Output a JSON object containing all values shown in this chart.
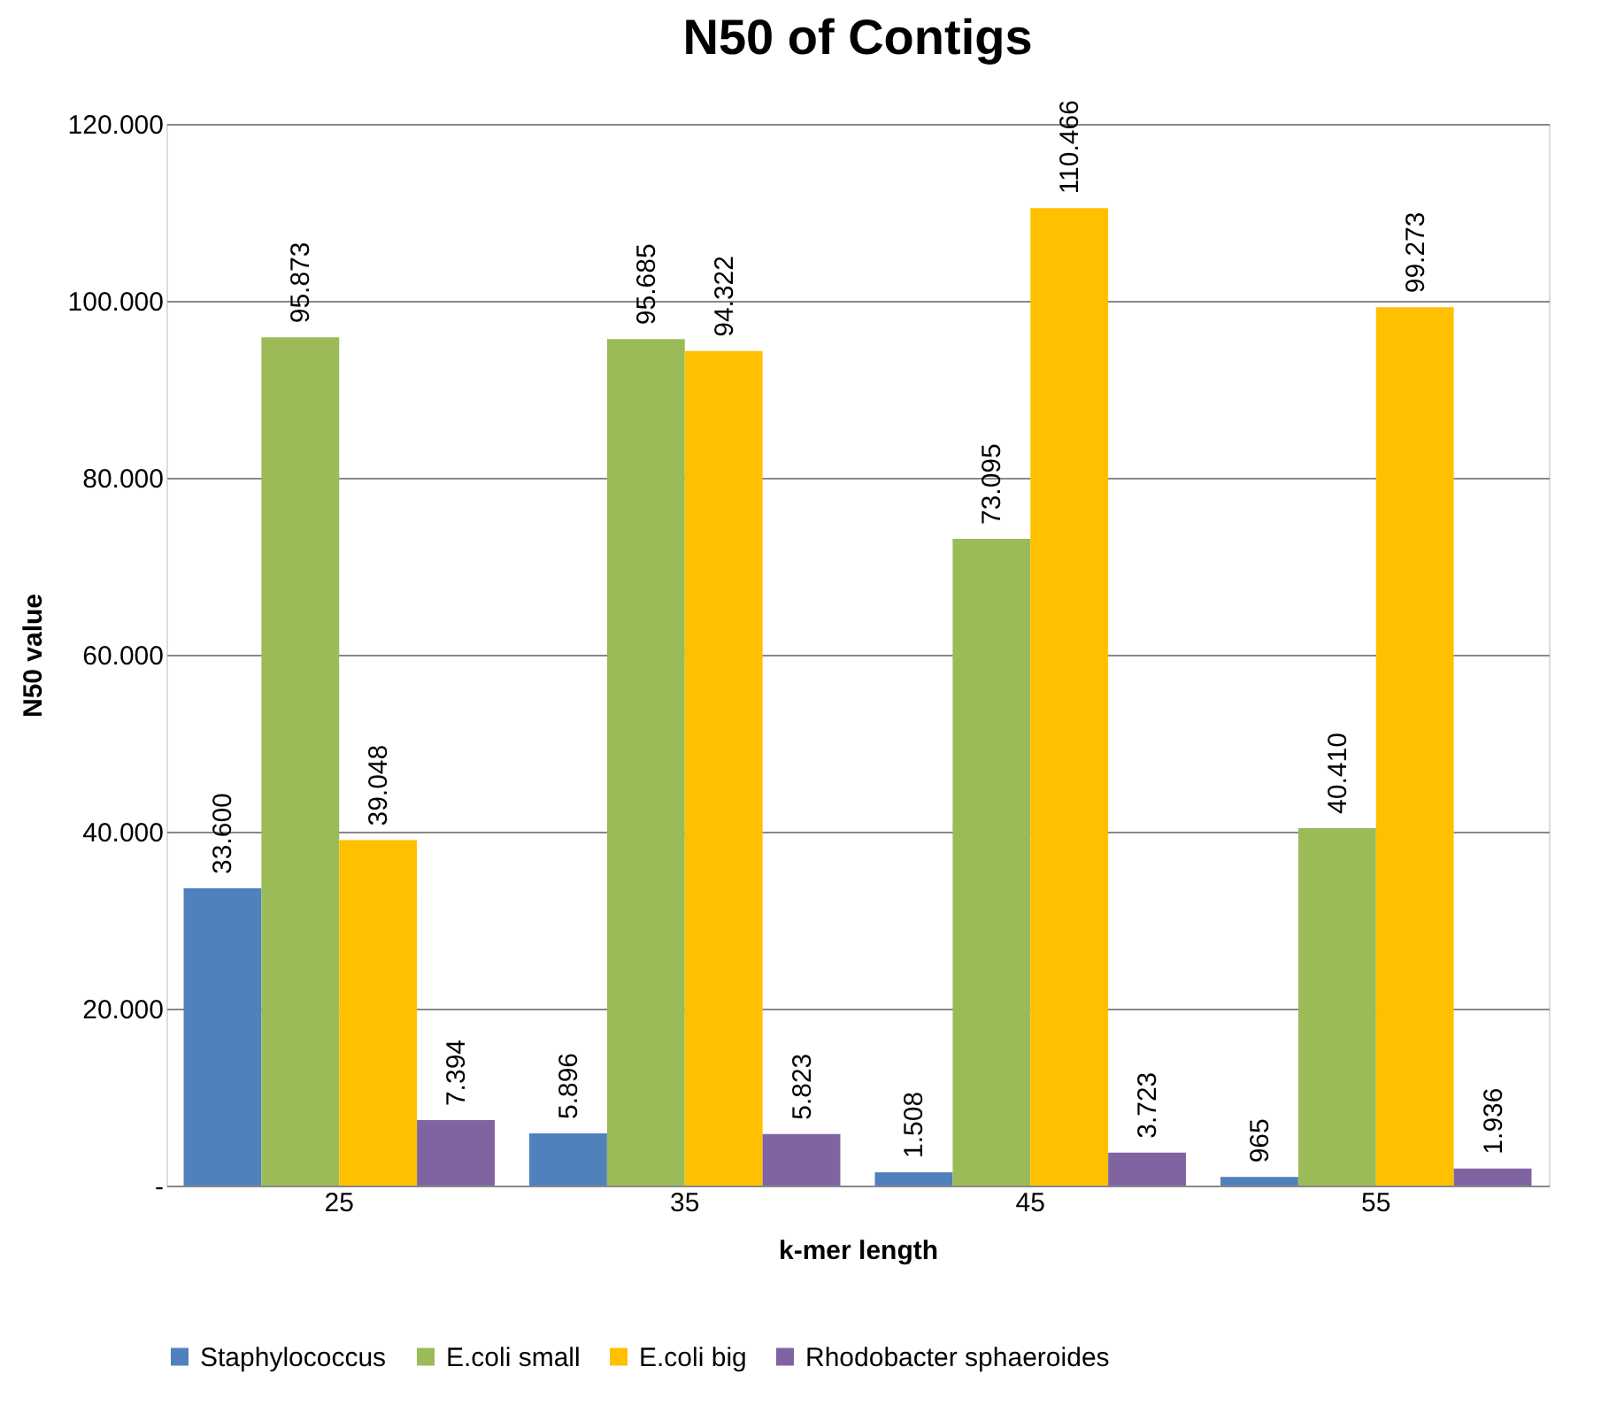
{
  "chart_data": {
    "type": "bar",
    "title": "N50 of Contigs",
    "xlabel": "k-mer length",
    "ylabel": "N50 value",
    "categories": [
      "25",
      "35",
      "45",
      "55"
    ],
    "series": [
      {
        "name": "Staphylococcus",
        "color": "#4f81bd",
        "values": [
          33600,
          5896,
          1508,
          965
        ],
        "value_labels": [
          "33.600",
          "5.896",
          "1.508",
          "965"
        ]
      },
      {
        "name": "E.coli small",
        "color": "#9bbb59",
        "values": [
          95873,
          95685,
          73095,
          40410
        ],
        "value_labels": [
          "95.873",
          "95.685",
          "73.095",
          "40.410"
        ]
      },
      {
        "name": "E.coli big",
        "color": "#ffc000",
        "values": [
          39048,
          94322,
          110466,
          99273
        ],
        "value_labels": [
          "39.048",
          "94.322",
          "110.466",
          "99.273"
        ]
      },
      {
        "name": "Rhodobacter sphaeroides",
        "color": "#8064a2",
        "values": [
          7394,
          5823,
          3723,
          1936
        ],
        "value_labels": [
          "7.394",
          "5.823",
          "3.723",
          "1.936"
        ]
      }
    ],
    "ylim": [
      0,
      120000
    ],
    "yticks": [
      {
        "value": 0,
        "label": "-"
      },
      {
        "value": 20000,
        "label": "20.000"
      },
      {
        "value": 40000,
        "label": "40.000"
      },
      {
        "value": 60000,
        "label": "60.000"
      },
      {
        "value": 80000,
        "label": "80.000"
      },
      {
        "value": 100000,
        "label": "100.000"
      },
      {
        "value": 120000,
        "label": "120.000"
      }
    ],
    "grid": "y",
    "legend": "bottom"
  }
}
